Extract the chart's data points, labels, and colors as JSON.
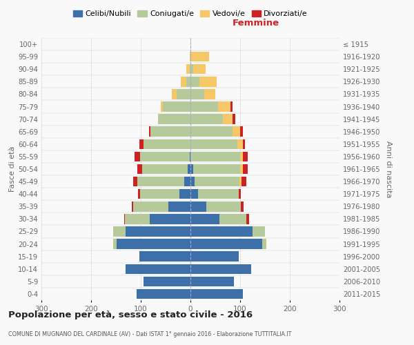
{
  "age_groups": [
    "0-4",
    "5-9",
    "10-14",
    "15-19",
    "20-24",
    "25-29",
    "30-34",
    "35-39",
    "40-44",
    "45-49",
    "50-54",
    "55-59",
    "60-64",
    "65-69",
    "70-74",
    "75-79",
    "80-84",
    "85-89",
    "90-94",
    "95-99",
    "100+"
  ],
  "birth_years": [
    "2011-2015",
    "2006-2010",
    "2001-2005",
    "1996-2000",
    "1991-1995",
    "1986-1990",
    "1981-1985",
    "1976-1980",
    "1971-1975",
    "1966-1970",
    "1961-1965",
    "1956-1960",
    "1951-1955",
    "1946-1950",
    "1941-1945",
    "1936-1940",
    "1931-1935",
    "1926-1930",
    "1921-1925",
    "1916-1920",
    "≤ 1915"
  ],
  "male_celibi": [
    108,
    95,
    130,
    103,
    148,
    130,
    82,
    45,
    22,
    12,
    5,
    2,
    0,
    0,
    0,
    0,
    0,
    0,
    0,
    0,
    0
  ],
  "male_coniugati": [
    0,
    0,
    0,
    0,
    8,
    25,
    50,
    70,
    80,
    95,
    92,
    100,
    95,
    80,
    65,
    55,
    28,
    8,
    2,
    0,
    0
  ],
  "male_vedovi": [
    0,
    0,
    0,
    0,
    0,
    0,
    0,
    0,
    0,
    0,
    0,
    0,
    0,
    0,
    0,
    5,
    10,
    12,
    6,
    2,
    0
  ],
  "male_divorziati": [
    0,
    0,
    0,
    0,
    0,
    0,
    2,
    3,
    3,
    8,
    10,
    10,
    8,
    4,
    0,
    0,
    0,
    0,
    0,
    0,
    0
  ],
  "female_nubili": [
    105,
    88,
    122,
    97,
    145,
    125,
    58,
    32,
    15,
    8,
    5,
    0,
    0,
    0,
    0,
    0,
    0,
    0,
    0,
    0,
    0
  ],
  "female_coniugate": [
    0,
    0,
    0,
    0,
    8,
    25,
    55,
    70,
    82,
    90,
    95,
    100,
    95,
    85,
    65,
    55,
    28,
    18,
    5,
    2,
    0
  ],
  "female_vedove": [
    0,
    0,
    0,
    0,
    0,
    0,
    0,
    0,
    0,
    5,
    5,
    5,
    10,
    15,
    20,
    25,
    22,
    35,
    25,
    35,
    2
  ],
  "female_divorziate": [
    0,
    0,
    0,
    0,
    0,
    0,
    5,
    5,
    5,
    10,
    10,
    10,
    5,
    5,
    5,
    5,
    0,
    0,
    0,
    0,
    0
  ],
  "color_celibi": "#3d6fa8",
  "color_coniugati": "#b5c99a",
  "color_vedovi": "#f5c766",
  "color_divorziati": "#cc2222",
  "xlim": 300,
  "title": "Popolazione per età, sesso e stato civile - 2016",
  "subtitle": "COMUNE DI MUGNANO DEL CARDINALE (AV) - Dati ISTAT 1° gennaio 2016 - Elaborazione TUTTITALIA.IT",
  "legend_labels": [
    "Celibi/Nubili",
    "Coniugati/e",
    "Vedovi/e",
    "Divorziati/e"
  ],
  "label_femmine": "Femmine",
  "ylabel_left": "Fasce di età",
  "ylabel_right": "Anni di nascita",
  "bg_color": "#f9f9f9",
  "grid_color": "#cccccc"
}
